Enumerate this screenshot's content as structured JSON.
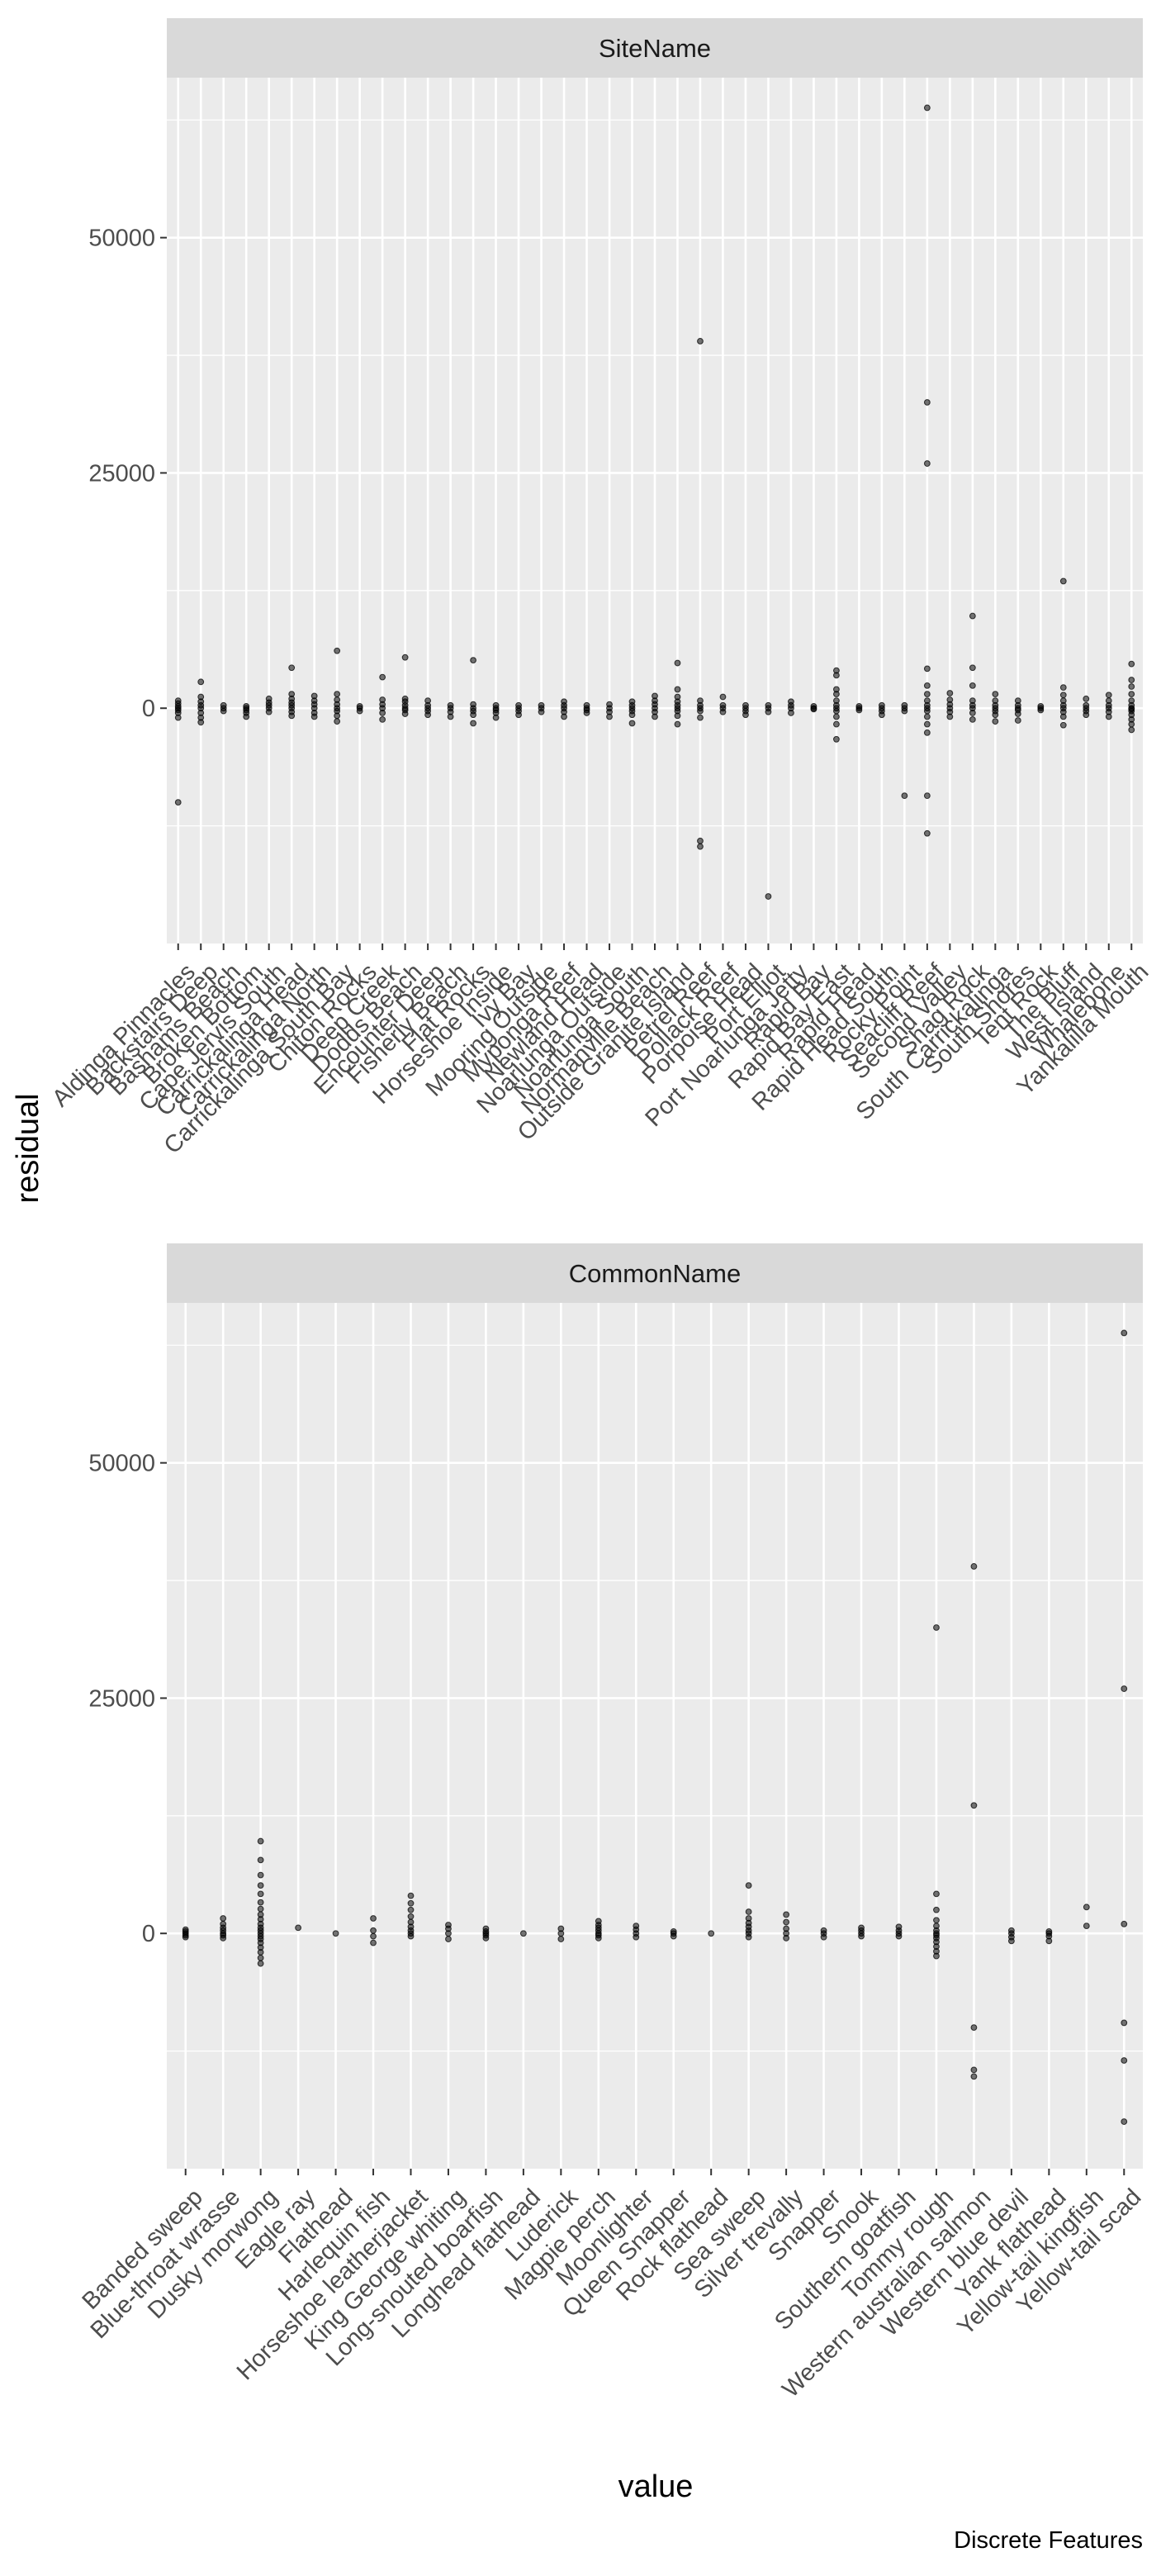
{
  "figure": {
    "y_axis_title": "residual",
    "x_axis_title": "value",
    "caption": "Discrete Features",
    "colors": {
      "panel_background": "#ebebeb",
      "grid": "#ffffff",
      "strip_background": "#d9d9d9",
      "point": "#000000"
    }
  },
  "chart_data": [
    {
      "type": "scatter",
      "facet": "SiteName",
      "ylabel": "residual",
      "ylim": [
        -25000,
        67000
      ],
      "yticks": [
        0,
        25000,
        50000
      ],
      "grid": true,
      "categories": [
        "Aldinga Pinnacles",
        "Backstairs Deep",
        "Bashams Beach",
        "Broken Bottom",
        "Cape Jervis South",
        "Carrickalinga Head",
        "Carrickalinga North",
        "Carrickalinga South Bay",
        "Chiton Rocks",
        "Deep Creek",
        "Dodds Beach",
        "Encounter Deep",
        "Fisherly Beach",
        "Flat Rocks",
        "Horseshoe Inside",
        "Ivy Bay",
        "Mooring Outside",
        "Myponga Reef",
        "Newland Head",
        "Noarlunga Outside",
        "Noarlunga South",
        "Normanville Beach",
        "Outside Granite Island",
        "Petrel Reef",
        "Pollack Reef",
        "Porpoise Head",
        "Port Elliot",
        "Port Noarlunga Jetty",
        "Rapid Bay",
        "Rapid Bay East",
        "Rapid Head",
        "Rapid Head South",
        "Rocky Point",
        "Seacliff Reef",
        "Second Valley",
        "Shag Rock",
        "South Carrickalinga",
        "South Shores",
        "Tent Rock",
        "The Bluff",
        "West Island",
        "Whalebone",
        "Yankalilla Mouth"
      ],
      "series": [
        {
          "name": "Aldinga Pinnacles",
          "values": [
            -10000,
            -1000,
            -500,
            -200,
            0,
            200,
            500,
            800
          ]
        },
        {
          "name": "Backstairs Deep",
          "values": [
            -1500,
            -1000,
            -500,
            0,
            300,
            700,
            1200,
            2800
          ]
        },
        {
          "name": "Bashams Beach",
          "values": [
            -300,
            0,
            300
          ]
        },
        {
          "name": "Broken Bottom",
          "values": [
            -900,
            -500,
            -200,
            0,
            200
          ]
        },
        {
          "name": "Cape Jervis South",
          "values": [
            -400,
            0,
            300,
            600,
            1000
          ]
        },
        {
          "name": "Carrickalinga Head",
          "values": [
            -800,
            -400,
            0,
            300,
            600,
            1000,
            1500,
            4300
          ]
        },
        {
          "name": "Carrickalinga North",
          "values": [
            -900,
            -500,
            0,
            400,
            800,
            1300
          ]
        },
        {
          "name": "Carrickalinga South Bay",
          "values": [
            -1400,
            -800,
            -300,
            0,
            400,
            900,
            1500,
            6100
          ]
        },
        {
          "name": "Chiton Rocks",
          "values": [
            -300,
            0,
            200
          ]
        },
        {
          "name": "Deep Creek",
          "values": [
            -1200,
            -500,
            0,
            400,
            900,
            3300
          ]
        },
        {
          "name": "Dodds Beach",
          "values": [
            -600,
            -200,
            0,
            300,
            700,
            1000,
            5400
          ]
        },
        {
          "name": "Encounter Deep",
          "values": [
            -700,
            -300,
            0,
            300,
            800
          ]
        },
        {
          "name": "Fisherly Beach",
          "values": [
            -900,
            -400,
            0,
            300
          ]
        },
        {
          "name": "Flat Rocks",
          "values": [
            -1600,
            -700,
            -300,
            0,
            400,
            5100
          ]
        },
        {
          "name": "Horseshoe Inside",
          "values": [
            -1000,
            -500,
            -200,
            0,
            300
          ]
        },
        {
          "name": "Ivy Bay",
          "values": [
            -700,
            -300,
            0,
            300
          ]
        },
        {
          "name": "Mooring Outside",
          "values": [
            -400,
            0,
            300
          ]
        },
        {
          "name": "Myponga Reef",
          "values": [
            -900,
            -400,
            0,
            300,
            700
          ]
        },
        {
          "name": "Newland Head",
          "values": [
            -500,
            -200,
            0,
            300
          ]
        },
        {
          "name": "Noarlunga Outside",
          "values": [
            -900,
            -400,
            0,
            400
          ]
        },
        {
          "name": "Noarlunga South",
          "values": [
            -1600,
            -700,
            -300,
            0,
            300,
            700
          ]
        },
        {
          "name": "Normanville Beach",
          "values": [
            -900,
            -400,
            0,
            400,
            800,
            1300
          ]
        },
        {
          "name": "Outside Granite Island",
          "values": [
            -1700,
            -800,
            -300,
            0,
            300,
            700,
            1200,
            2000,
            4800
          ]
        },
        {
          "name": "Petrel Reef",
          "values": [
            -14700,
            -14100,
            -1000,
            -300,
            0,
            300,
            800,
            39000
          ]
        },
        {
          "name": "Pollack Reef",
          "values": [
            -400,
            0,
            300,
            1200
          ]
        },
        {
          "name": "Porpoise Head",
          "values": [
            -700,
            -300,
            0,
            300
          ]
        },
        {
          "name": "Port Elliot",
          "values": [
            -20000,
            -400,
            0,
            300
          ]
        },
        {
          "name": "Port Noarlunga Jetty",
          "values": [
            -500,
            0,
            300,
            700
          ]
        },
        {
          "name": "Rapid Bay",
          "values": [
            -100,
            0,
            200
          ]
        },
        {
          "name": "Rapid Bay East",
          "values": [
            -3300,
            -1700,
            -900,
            -300,
            0,
            300,
            800,
            1500,
            2000,
            3500,
            4000
          ]
        },
        {
          "name": "Rapid Head",
          "values": [
            -200,
            0,
            200
          ]
        },
        {
          "name": "Rapid Head South",
          "values": [
            -700,
            -300,
            0,
            300
          ]
        },
        {
          "name": "Rocky Point",
          "values": [
            -9300,
            -300,
            0,
            300
          ]
        },
        {
          "name": "Seacliff Reef",
          "values": [
            -13300,
            -9300,
            -2600,
            -1700,
            -900,
            -300,
            0,
            300,
            800,
            1500,
            2400,
            4200,
            26000,
            32500,
            63800
          ]
        },
        {
          "name": "Second Valley",
          "values": [
            -900,
            -400,
            0,
            400,
            900,
            1600
          ]
        },
        {
          "name": "Shag Rock",
          "values": [
            -1200,
            -500,
            0,
            300,
            800,
            2400,
            4300,
            9800
          ]
        },
        {
          "name": "South Carrickalinga",
          "values": [
            -1400,
            -700,
            -300,
            0,
            300,
            800,
            1500
          ]
        },
        {
          "name": "South Shores",
          "values": [
            -1300,
            -600,
            -200,
            0,
            300,
            800
          ]
        },
        {
          "name": "Tent Rock",
          "values": [
            -200,
            0,
            200
          ]
        },
        {
          "name": "The Bluff",
          "values": [
            -1800,
            -900,
            -400,
            0,
            300,
            800,
            1400,
            2200,
            13500
          ]
        },
        {
          "name": "West Island",
          "values": [
            -700,
            -300,
            0,
            300,
            1000
          ]
        },
        {
          "name": "Whalebone",
          "values": [
            -900,
            -400,
            0,
            300,
            800,
            1400
          ]
        },
        {
          "name": "Yankalilla Mouth",
          "values": [
            -2300,
            -1700,
            -1200,
            -700,
            -300,
            0,
            300,
            800,
            1500,
            2300,
            3000,
            4700,
            -100
          ]
        }
      ]
    },
    {
      "type": "scatter",
      "facet": "CommonName",
      "ylabel": "residual",
      "ylim": [
        -25000,
        67000
      ],
      "yticks": [
        0,
        25000,
        50000
      ],
      "grid": true,
      "categories": [
        "Banded sweep",
        "Blue-throat wrasse",
        "Dusky morwong",
        "Eagle ray",
        "Flathead",
        "Harlequin fish",
        "Horseshoe leatherjacket",
        "King George whiting",
        "Long-snouted boarfish",
        "Longhead flathead",
        "Luderick",
        "Magpie perch",
        "Moonlighter",
        "Queen Snapper",
        "Rock flathead",
        "Sea sweep",
        "Silver trevally",
        "Snapper",
        "Snook",
        "Southern goatfish",
        "Tommy rough",
        "Western australian salmon",
        "Western blue devil",
        "Yank flathead",
        "Yellow-tail kingfish",
        "Yellow-tail scad"
      ],
      "series": [
        {
          "name": "Banded sweep",
          "values": [
            -400,
            -200,
            0,
            200,
            400
          ]
        },
        {
          "name": "Blue-throat wrasse",
          "values": [
            -500,
            -200,
            0,
            300,
            600,
            1000,
            1600
          ]
        },
        {
          "name": "Dusky morwong",
          "values": [
            -3200,
            -2600,
            -2000,
            -1500,
            -1000,
            -600,
            -300,
            0,
            300,
            600,
            1000,
            1500,
            2000,
            2600,
            3300,
            4200,
            5100,
            6200,
            7800,
            9800
          ]
        },
        {
          "name": "Eagle ray",
          "values": [
            600
          ]
        },
        {
          "name": "Flathead",
          "values": [
            0
          ]
        },
        {
          "name": "Harlequin fish",
          "values": [
            -1000,
            -300,
            300,
            1600
          ]
        },
        {
          "name": "Horseshoe leatherjacket",
          "values": [
            -300,
            0,
            300,
            700,
            1200,
            1800,
            2500,
            3200,
            4000
          ]
        },
        {
          "name": "King George whiting",
          "values": [
            -600,
            0,
            500,
            900
          ]
        },
        {
          "name": "Long-snouted boarfish",
          "values": [
            -500,
            -200,
            0,
            200,
            500
          ]
        },
        {
          "name": "Longhead flathead",
          "values": [
            0
          ]
        },
        {
          "name": "Luderick",
          "values": [
            -600,
            0,
            500
          ]
        },
        {
          "name": "Magpie perch",
          "values": [
            -500,
            -200,
            0,
            300,
            600,
            900,
            1300
          ]
        },
        {
          "name": "Moonlighter",
          "values": [
            -400,
            0,
            400,
            800
          ]
        },
        {
          "name": "Queen Snapper",
          "values": [
            -300,
            0,
            200
          ]
        },
        {
          "name": "Rock flathead",
          "values": [
            0
          ]
        },
        {
          "name": "Sea sweep",
          "values": [
            -400,
            0,
            300,
            700,
            1100,
            1600,
            2300,
            5100
          ]
        },
        {
          "name": "Silver trevally",
          "values": [
            -500,
            0,
            500,
            1200,
            2000
          ]
        },
        {
          "name": "Snapper",
          "values": [
            -400,
            0,
            300
          ]
        },
        {
          "name": "Snook",
          "values": [
            -300,
            0,
            300,
            600
          ]
        },
        {
          "name": "Southern goatfish",
          "values": [
            -300,
            0,
            300,
            700
          ]
        },
        {
          "name": "Tommy rough",
          "values": [
            -2400,
            -1900,
            -1400,
            -900,
            -500,
            -200,
            0,
            300,
            800,
            1400,
            2500,
            4200,
            32500
          ]
        },
        {
          "name": "Western australian salmon",
          "values": [
            -15200,
            -14500,
            -10000,
            13600,
            39000
          ]
        },
        {
          "name": "Western blue devil",
          "values": [
            -800,
            -400,
            0,
            300
          ]
        },
        {
          "name": "Yank flathead",
          "values": [
            -800,
            -300,
            0,
            200
          ]
        },
        {
          "name": "Yellow-tail kingfish",
          "values": [
            800,
            2800
          ]
        },
        {
          "name": "Yellow-tail scad",
          "values": [
            -20000,
            -13500,
            -9500,
            1000,
            26000,
            63800
          ]
        }
      ]
    }
  ]
}
